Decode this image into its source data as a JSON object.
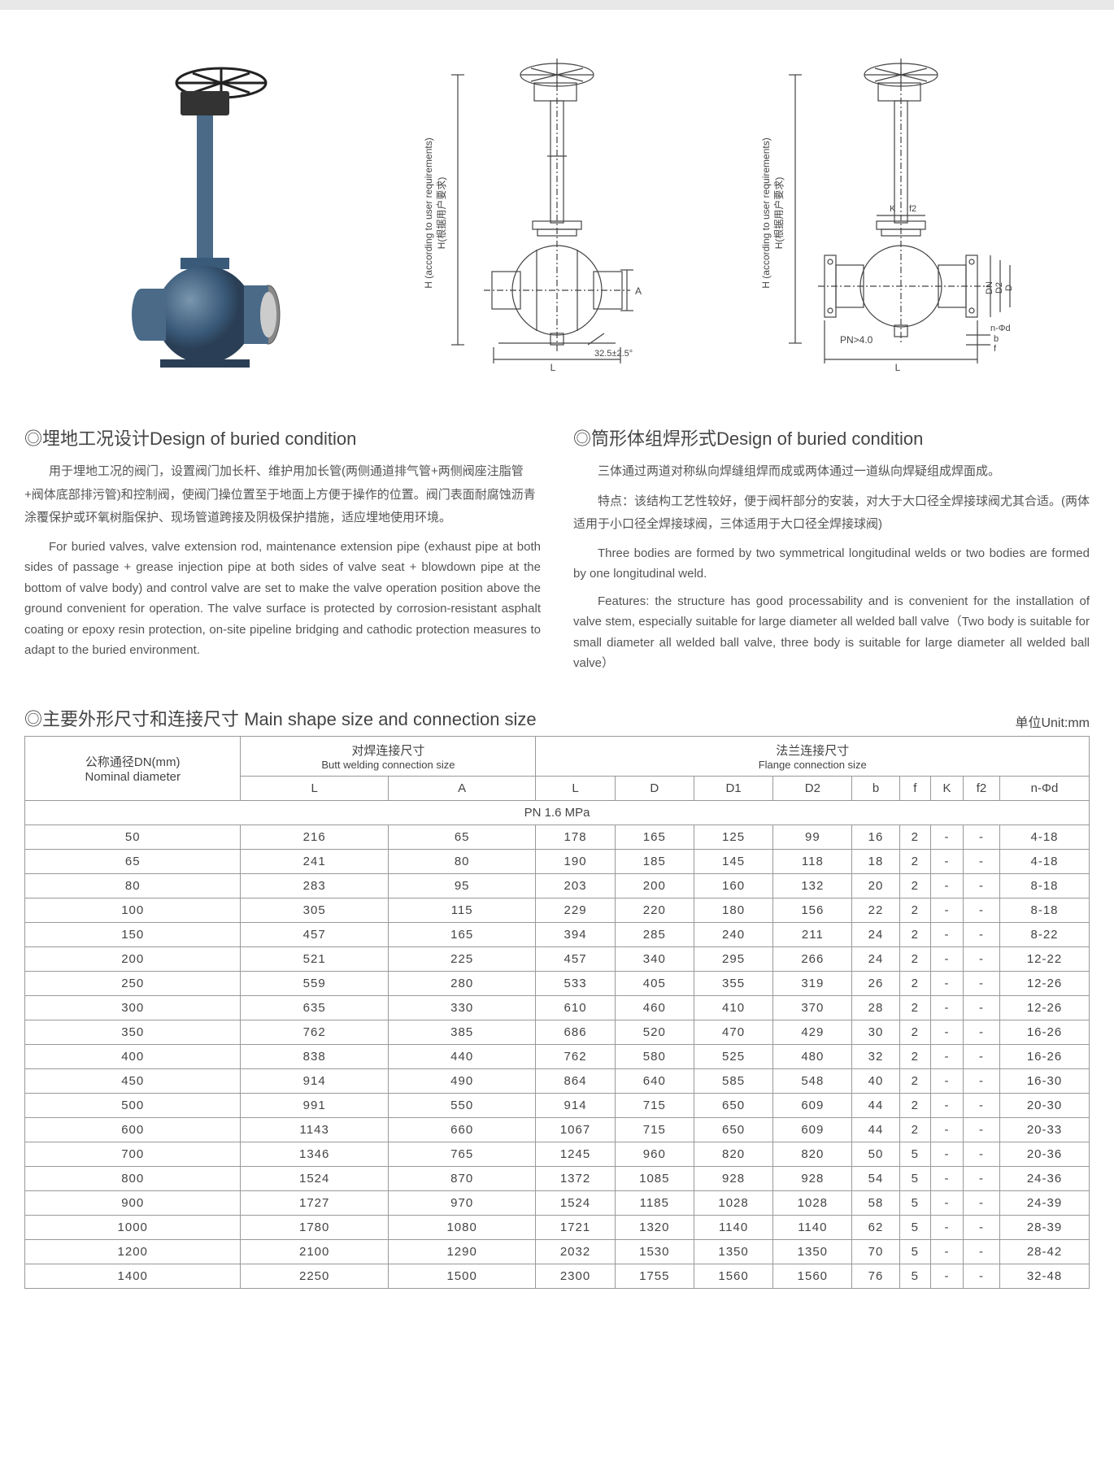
{
  "figures": {
    "dim_label_h_cn": "H(根据用户要求)",
    "dim_label_h_en": "H (according to user requirements)",
    "dim_label_l": "L",
    "dim_label_a": "A",
    "angle_label": "32.5±2.5°",
    "dim_label_pn": "PN>4.0",
    "dim_label_k": "K",
    "dim_label_f2": "f2",
    "dim_label_dn": "DN",
    "dim_label_d2": "D2",
    "dim_label_d": "D",
    "dim_label_nphi": "n-Φd",
    "dim_label_b": "b",
    "dim_label_f": "f"
  },
  "sections": {
    "left": {
      "title": "◎埋地工况设计Design of buried condition",
      "cn": "用于埋地工况的阀门，设置阀门加长杆、维护用加长管(两侧通道排气管+两侧阀座注脂管+阀体底部排污管)和控制阀，使阀门操位置至于地面上方便于操作的位置。阀门表面耐腐蚀沥青涂覆保护或环氧树脂保护、现场管道跨接及阴极保护措施，适应埋地使用环境。",
      "en": "For buried valves, valve extension rod, maintenance extension pipe (exhaust pipe at both sides of passage + grease injection pipe at both sides of valve seat + blowdown pipe at the bottom of valve body) and control valve are set to make the valve operation position above the ground convenient for operation. The valve surface is protected by corrosion-resistant asphalt coating or epoxy resin protection, on-site pipeline bridging and cathodic protection measures to adapt to the buried environment."
    },
    "right": {
      "title": "◎筒形体组焊形式Design of buried condition",
      "cn1": "三体通过两道对称纵向焊缝组焊而成或两体通过一道纵向焊疑组成焊面成。",
      "cn2": "特点：该结构工艺性较好，便于阀杆部分的安装，对大于大口径全焊接球阀尤其合适。(两体适用于小口径全焊接球阀，三体适用于大口径全焊接球阀)",
      "en1": "Three bodies are formed by two symmetrical longitudinal welds or two bodies are formed by one longitudinal weld.",
      "en2": "Features: the structure has good processability and is convenient for the installation of valve stem, especially suitable for large diameter all welded ball valve（Two body is suitable for small diameter all welded ball valve, three body is suitable for large diameter all welded ball valve）"
    }
  },
  "table": {
    "title": "◎主要外形尺寸和连接尺寸 Main shape size and connection size",
    "unit": "单位Unit:mm",
    "header": {
      "dn_cn": "公称通径DN(mm)",
      "dn_en": "Nominal diameter",
      "butt_cn": "对焊连接尺寸",
      "butt_en": "Butt welding connection size",
      "flange_cn": "法兰连接尺寸",
      "flange_en": "Flange connection size",
      "cols": [
        "L",
        "A",
        "L",
        "D",
        "D1",
        "D2",
        "b",
        "f",
        "K",
        "f2",
        "n-Φd"
      ]
    },
    "pn_label": "PN 1.6 MPa",
    "rows": [
      [
        "50",
        "216",
        "65",
        "178",
        "165",
        "125",
        "99",
        "16",
        "2",
        "-",
        "-",
        "4-18"
      ],
      [
        "65",
        "241",
        "80",
        "190",
        "185",
        "145",
        "118",
        "18",
        "2",
        "-",
        "-",
        "4-18"
      ],
      [
        "80",
        "283",
        "95",
        "203",
        "200",
        "160",
        "132",
        "20",
        "2",
        "-",
        "-",
        "8-18"
      ],
      [
        "100",
        "305",
        "115",
        "229",
        "220",
        "180",
        "156",
        "22",
        "2",
        "-",
        "-",
        "8-18"
      ],
      [
        "150",
        "457",
        "165",
        "394",
        "285",
        "240",
        "211",
        "24",
        "2",
        "-",
        "-",
        "8-22"
      ],
      [
        "200",
        "521",
        "225",
        "457",
        "340",
        "295",
        "266",
        "24",
        "2",
        "-",
        "-",
        "12-22"
      ],
      [
        "250",
        "559",
        "280",
        "533",
        "405",
        "355",
        "319",
        "26",
        "2",
        "-",
        "-",
        "12-26"
      ],
      [
        "300",
        "635",
        "330",
        "610",
        "460",
        "410",
        "370",
        "28",
        "2",
        "-",
        "-",
        "12-26"
      ],
      [
        "350",
        "762",
        "385",
        "686",
        "520",
        "470",
        "429",
        "30",
        "2",
        "-",
        "-",
        "16-26"
      ],
      [
        "400",
        "838",
        "440",
        "762",
        "580",
        "525",
        "480",
        "32",
        "2",
        "-",
        "-",
        "16-26"
      ],
      [
        "450",
        "914",
        "490",
        "864",
        "640",
        "585",
        "548",
        "40",
        "2",
        "-",
        "-",
        "16-30"
      ],
      [
        "500",
        "991",
        "550",
        "914",
        "715",
        "650",
        "609",
        "44",
        "2",
        "-",
        "-",
        "20-30"
      ],
      [
        "600",
        "1143",
        "660",
        "1067",
        "715",
        "650",
        "609",
        "44",
        "2",
        "-",
        "-",
        "20-33"
      ],
      [
        "700",
        "1346",
        "765",
        "1245",
        "960",
        "820",
        "820",
        "50",
        "5",
        "-",
        "-",
        "20-36"
      ],
      [
        "800",
        "1524",
        "870",
        "1372",
        "1085",
        "928",
        "928",
        "54",
        "5",
        "-",
        "-",
        "24-36"
      ],
      [
        "900",
        "1727",
        "970",
        "1524",
        "1185",
        "1028",
        "1028",
        "58",
        "5",
        "-",
        "-",
        "24-39"
      ],
      [
        "1000",
        "1780",
        "1080",
        "1721",
        "1320",
        "1140",
        "1140",
        "62",
        "5",
        "-",
        "-",
        "28-39"
      ],
      [
        "1200",
        "2100",
        "1290",
        "2032",
        "1530",
        "1350",
        "1350",
        "70",
        "5",
        "-",
        "-",
        "28-42"
      ],
      [
        "1400",
        "2250",
        "1500",
        "2300",
        "1755",
        "1560",
        "1560",
        "76",
        "5",
        "-",
        "-",
        "32-48"
      ]
    ]
  },
  "colors": {
    "gray_border": "#999999",
    "text": "#444444",
    "valve_blue": "#3a5a7a",
    "diagram_line": "#444444"
  }
}
